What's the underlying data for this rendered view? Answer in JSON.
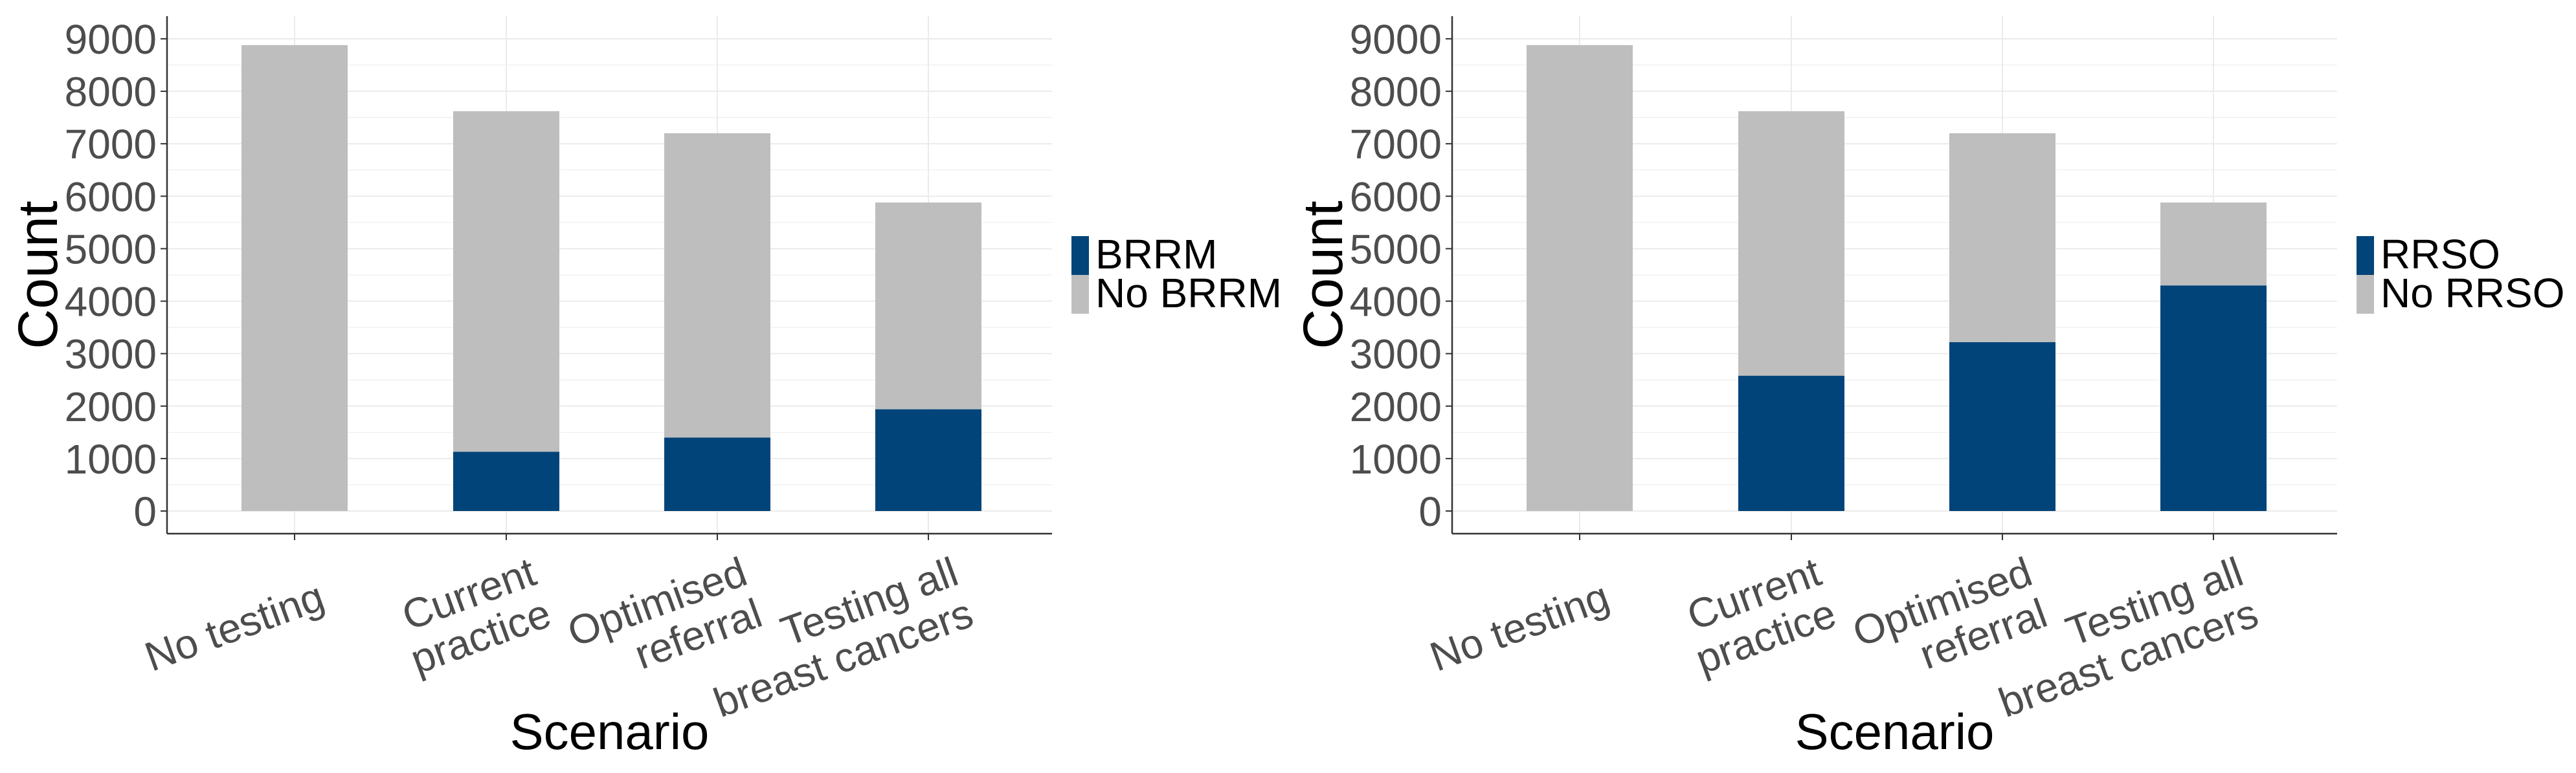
{
  "colors": {
    "treated": "#004479",
    "untreated": "#bebebe",
    "axis": "#333333",
    "grid": "#ebebeb",
    "tick_text": "#4d4d4d"
  },
  "chart_data": [
    {
      "type": "bar",
      "stacked": true,
      "categories": [
        [
          "No testing"
        ],
        [
          "Current",
          "practice"
        ],
        [
          "Optimised",
          "referral"
        ],
        [
          "Testing all",
          "breast cancers"
        ]
      ],
      "series": [
        {
          "name": "BRRM",
          "values": [
            0,
            1130,
            1400,
            1940
          ],
          "color": "#004479"
        },
        {
          "name": "No BRRM",
          "values": [
            8880,
            6490,
            5800,
            3940
          ],
          "color": "#bebebe"
        }
      ],
      "xlabel": "Scenario",
      "ylabel": "Count",
      "ylim": [
        0,
        9000
      ],
      "yticks": [
        0,
        1000,
        2000,
        3000,
        4000,
        5000,
        6000,
        7000,
        8000,
        9000
      ],
      "grid": true,
      "legend_position": "right"
    },
    {
      "type": "bar",
      "stacked": true,
      "categories": [
        [
          "No testing"
        ],
        [
          "Current",
          "practice"
        ],
        [
          "Optimised",
          "referral"
        ],
        [
          "Testing all",
          "breast cancers"
        ]
      ],
      "series": [
        {
          "name": "RRSO",
          "values": [
            0,
            2580,
            3220,
            4300
          ],
          "color": "#004479"
        },
        {
          "name": "No RRSO",
          "values": [
            8880,
            5040,
            3980,
            1580
          ],
          "color": "#bebebe"
        }
      ],
      "xlabel": "Scenario",
      "ylabel": "Count",
      "ylim": [
        0,
        9000
      ],
      "yticks": [
        0,
        1000,
        2000,
        3000,
        4000,
        5000,
        6000,
        7000,
        8000,
        9000
      ],
      "grid": true,
      "legend_position": "right"
    }
  ]
}
